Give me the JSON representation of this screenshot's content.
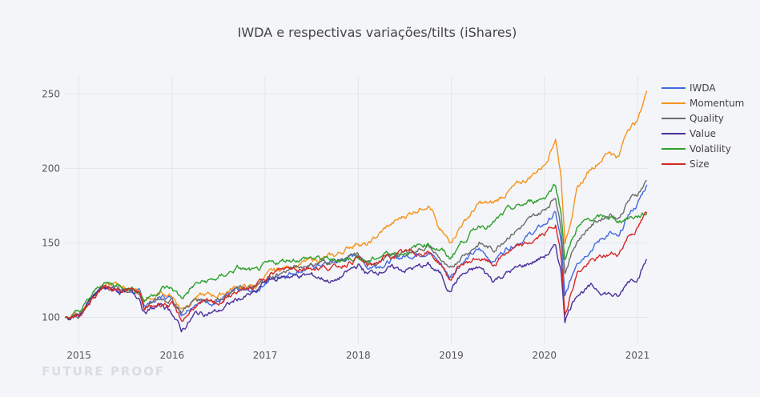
{
  "chart_data": {
    "type": "line",
    "title": "IWDA e respectivas variações/tilts (iShares)",
    "xlabel": "",
    "ylabel": "",
    "xlim": [
      2014.84,
      2021.12
    ],
    "ylim": [
      82,
      262
    ],
    "x_ticks": [
      2015,
      2016,
      2017,
      2018,
      2019,
      2020,
      2021
    ],
    "y_ticks": [
      100,
      150,
      200,
      250
    ],
    "grid": true,
    "legend_placement": "top-right",
    "series": [
      {
        "name": "IWDA",
        "color": "#4169e1",
        "points": [
          [
            2014.85,
            100
          ],
          [
            2015.0,
            103
          ],
          [
            2015.25,
            121
          ],
          [
            2015.5,
            119
          ],
          [
            2015.65,
            116
          ],
          [
            2015.7,
            108
          ],
          [
            2015.9,
            114
          ],
          [
            2016.0,
            113
          ],
          [
            2016.1,
            103
          ],
          [
            2016.25,
            111
          ],
          [
            2016.5,
            111
          ],
          [
            2016.7,
            117
          ],
          [
            2016.9,
            117
          ],
          [
            2017.0,
            124
          ],
          [
            2017.25,
            130
          ],
          [
            2017.5,
            134
          ],
          [
            2017.75,
            137
          ],
          [
            2018.0,
            142
          ],
          [
            2018.1,
            134
          ],
          [
            2018.3,
            137
          ],
          [
            2018.5,
            141
          ],
          [
            2018.75,
            145
          ],
          [
            2018.9,
            135
          ],
          [
            2018.98,
            127
          ],
          [
            2019.1,
            137
          ],
          [
            2019.3,
            145
          ],
          [
            2019.45,
            138
          ],
          [
            2019.6,
            147
          ],
          [
            2019.8,
            154
          ],
          [
            2020.0,
            162
          ],
          [
            2020.12,
            170
          ],
          [
            2020.18,
            150
          ],
          [
            2020.22,
            112
          ],
          [
            2020.35,
            138
          ],
          [
            2020.5,
            147
          ],
          [
            2020.7,
            157
          ],
          [
            2020.8,
            152
          ],
          [
            2020.9,
            168
          ],
          [
            2021.0,
            176
          ],
          [
            2021.1,
            189
          ]
        ]
      },
      {
        "name": "Momentum",
        "color": "#f5931d",
        "points": [
          [
            2014.85,
            100
          ],
          [
            2015.0,
            104
          ],
          [
            2015.25,
            122
          ],
          [
            2015.5,
            120
          ],
          [
            2015.65,
            117
          ],
          [
            2015.7,
            110
          ],
          [
            2015.9,
            116
          ],
          [
            2016.0,
            115
          ],
          [
            2016.1,
            106
          ],
          [
            2016.25,
            114
          ],
          [
            2016.5,
            115
          ],
          [
            2016.7,
            121
          ],
          [
            2016.9,
            120
          ],
          [
            2017.0,
            128
          ],
          [
            2017.25,
            134
          ],
          [
            2017.5,
            138
          ],
          [
            2017.75,
            141
          ],
          [
            2018.0,
            151
          ],
          [
            2018.1,
            148
          ],
          [
            2018.3,
            160
          ],
          [
            2018.5,
            168
          ],
          [
            2018.75,
            177
          ],
          [
            2018.8,
            172
          ],
          [
            2018.85,
            160
          ],
          [
            2018.98,
            150
          ],
          [
            2019.1,
            162
          ],
          [
            2019.3,
            176
          ],
          [
            2019.45,
            176
          ],
          [
            2019.6,
            184
          ],
          [
            2019.8,
            192
          ],
          [
            2020.0,
            203
          ],
          [
            2020.12,
            221
          ],
          [
            2020.18,
            195
          ],
          [
            2020.22,
            150
          ],
          [
            2020.35,
            185
          ],
          [
            2020.5,
            200
          ],
          [
            2020.7,
            212
          ],
          [
            2020.8,
            208
          ],
          [
            2020.9,
            228
          ],
          [
            2021.0,
            232
          ],
          [
            2021.1,
            252
          ]
        ]
      },
      {
        "name": "Quality",
        "color": "#6b6b6b",
        "points": [
          [
            2014.85,
            100
          ],
          [
            2015.0,
            102
          ],
          [
            2015.25,
            121
          ],
          [
            2015.5,
            119
          ],
          [
            2015.65,
            116
          ],
          [
            2015.7,
            107
          ],
          [
            2015.9,
            113
          ],
          [
            2016.0,
            112
          ],
          [
            2016.1,
            104
          ],
          [
            2016.25,
            112
          ],
          [
            2016.5,
            113
          ],
          [
            2016.7,
            119
          ],
          [
            2016.9,
            119
          ],
          [
            2017.0,
            125
          ],
          [
            2017.25,
            132
          ],
          [
            2017.5,
            136
          ],
          [
            2017.75,
            138
          ],
          [
            2018.0,
            141
          ],
          [
            2018.1,
            135
          ],
          [
            2018.3,
            140
          ],
          [
            2018.5,
            143
          ],
          [
            2018.75,
            148
          ],
          [
            2018.9,
            138
          ],
          [
            2018.98,
            130
          ],
          [
            2019.1,
            141
          ],
          [
            2019.3,
            150
          ],
          [
            2019.45,
            145
          ],
          [
            2019.6,
            155
          ],
          [
            2019.8,
            163
          ],
          [
            2020.0,
            172
          ],
          [
            2020.12,
            182
          ],
          [
            2020.18,
            160
          ],
          [
            2020.22,
            132
          ],
          [
            2020.35,
            152
          ],
          [
            2020.5,
            162
          ],
          [
            2020.7,
            170
          ],
          [
            2020.8,
            167
          ],
          [
            2020.9,
            178
          ],
          [
            2021.0,
            183
          ],
          [
            2021.1,
            192
          ]
        ]
      },
      {
        "name": "Value",
        "color": "#4b2e9c",
        "points": [
          [
            2014.85,
            100
          ],
          [
            2015.0,
            101
          ],
          [
            2015.25,
            120
          ],
          [
            2015.5,
            117
          ],
          [
            2015.65,
            114
          ],
          [
            2015.7,
            104
          ],
          [
            2015.9,
            108
          ],
          [
            2016.0,
            104
          ],
          [
            2016.1,
            91
          ],
          [
            2016.25,
            102
          ],
          [
            2016.5,
            104
          ],
          [
            2016.7,
            112
          ],
          [
            2016.9,
            116
          ],
          [
            2017.0,
            124
          ],
          [
            2017.25,
            128
          ],
          [
            2017.5,
            128
          ],
          [
            2017.75,
            124
          ],
          [
            2018.0,
            135
          ],
          [
            2018.1,
            129
          ],
          [
            2018.3,
            133
          ],
          [
            2018.5,
            132
          ],
          [
            2018.75,
            135
          ],
          [
            2018.9,
            128
          ],
          [
            2018.98,
            118
          ],
          [
            2019.1,
            128
          ],
          [
            2019.3,
            133
          ],
          [
            2019.45,
            125
          ],
          [
            2019.6,
            130
          ],
          [
            2019.8,
            135
          ],
          [
            2020.0,
            141
          ],
          [
            2020.12,
            147
          ],
          [
            2020.18,
            130
          ],
          [
            2020.22,
            99
          ],
          [
            2020.35,
            117
          ],
          [
            2020.5,
            120
          ],
          [
            2020.7,
            116
          ],
          [
            2020.8,
            113
          ],
          [
            2020.9,
            125
          ],
          [
            2021.0,
            128
          ],
          [
            2021.1,
            139
          ]
        ]
      },
      {
        "name": "Volatility",
        "color": "#2ca02c",
        "points": [
          [
            2014.85,
            100
          ],
          [
            2015.0,
            103
          ],
          [
            2015.25,
            123
          ],
          [
            2015.5,
            121
          ],
          [
            2015.65,
            118
          ],
          [
            2015.7,
            112
          ],
          [
            2015.9,
            120
          ],
          [
            2016.0,
            119
          ],
          [
            2016.1,
            113
          ],
          [
            2016.25,
            122
          ],
          [
            2016.5,
            126
          ],
          [
            2016.7,
            133
          ],
          [
            2016.9,
            130
          ],
          [
            2017.0,
            134
          ],
          [
            2017.25,
            139
          ],
          [
            2017.5,
            140
          ],
          [
            2017.75,
            138
          ],
          [
            2018.0,
            141
          ],
          [
            2018.1,
            137
          ],
          [
            2018.3,
            143
          ],
          [
            2018.5,
            144
          ],
          [
            2018.75,
            150
          ],
          [
            2018.9,
            145
          ],
          [
            2018.98,
            139
          ],
          [
            2019.1,
            150
          ],
          [
            2019.3,
            162
          ],
          [
            2019.45,
            163
          ],
          [
            2019.6,
            171
          ],
          [
            2019.8,
            176
          ],
          [
            2020.0,
            181
          ],
          [
            2020.12,
            190
          ],
          [
            2020.18,
            170
          ],
          [
            2020.22,
            140
          ],
          [
            2020.35,
            160
          ],
          [
            2020.5,
            166
          ],
          [
            2020.7,
            167
          ],
          [
            2020.8,
            165
          ],
          [
            2020.9,
            167
          ],
          [
            2021.0,
            168
          ],
          [
            2021.1,
            170
          ]
        ]
      },
      {
        "name": "Size",
        "color": "#d62728",
        "points": [
          [
            2014.85,
            100
          ],
          [
            2015.0,
            102
          ],
          [
            2015.25,
            120
          ],
          [
            2015.5,
            119
          ],
          [
            2015.65,
            116
          ],
          [
            2015.7,
            105
          ],
          [
            2015.9,
            110
          ],
          [
            2016.0,
            108
          ],
          [
            2016.1,
            97
          ],
          [
            2016.25,
            108
          ],
          [
            2016.5,
            110
          ],
          [
            2016.7,
            117
          ],
          [
            2016.9,
            120
          ],
          [
            2017.0,
            128
          ],
          [
            2017.25,
            133
          ],
          [
            2017.5,
            134
          ],
          [
            2017.75,
            133
          ],
          [
            2018.0,
            140
          ],
          [
            2018.1,
            134
          ],
          [
            2018.3,
            140
          ],
          [
            2018.5,
            143
          ],
          [
            2018.75,
            144
          ],
          [
            2018.9,
            135
          ],
          [
            2018.98,
            125
          ],
          [
            2019.1,
            135
          ],
          [
            2019.3,
            140
          ],
          [
            2019.45,
            135
          ],
          [
            2019.6,
            144
          ],
          [
            2019.8,
            148
          ],
          [
            2020.0,
            156
          ],
          [
            2020.12,
            162
          ],
          [
            2020.18,
            140
          ],
          [
            2020.22,
            103
          ],
          [
            2020.35,
            130
          ],
          [
            2020.5,
            137
          ],
          [
            2020.7,
            142
          ],
          [
            2020.8,
            143
          ],
          [
            2020.9,
            155
          ],
          [
            2021.0,
            160
          ],
          [
            2021.1,
            170
          ]
        ]
      }
    ]
  },
  "watermark": "FUTURE PROOF"
}
